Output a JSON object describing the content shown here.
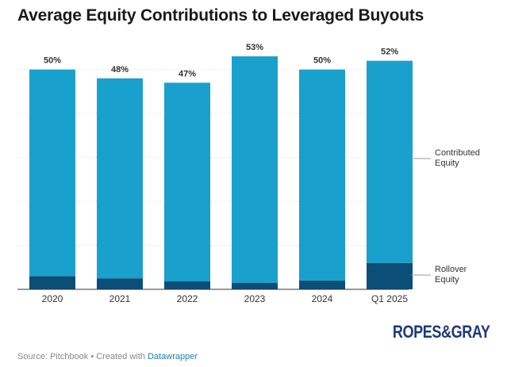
{
  "title": "Average Equity Contributions to Leveraged Buyouts",
  "footer": {
    "prefix": "Source: Pitchbook • Created with ",
    "link": "Datawrapper"
  },
  "logo": {
    "left": "ROPES",
    "amp": "&",
    "right": "GRAY"
  },
  "chart_data": {
    "type": "bar",
    "stacked": true,
    "categories": [
      "2020",
      "2021",
      "2022",
      "2023",
      "2024",
      "Q1 2025"
    ],
    "labels": [
      "50%",
      "48%",
      "47%",
      "53%",
      "50%",
      "52%"
    ],
    "series": [
      {
        "name": "Rollover\nEquity",
        "values": [
          3,
          2.5,
          1.8,
          1.5,
          2,
          6
        ],
        "color": "#0b4e78"
      },
      {
        "name": "Contributed\nEquity",
        "values": [
          47,
          45.5,
          45.2,
          51.5,
          48,
          46
        ],
        "color": "#1aa0cc"
      }
    ],
    "ylim": [
      0,
      55
    ],
    "gridlines": [
      10,
      20,
      30,
      40,
      50
    ],
    "grid": true,
    "legend": "direct labels at right"
  }
}
